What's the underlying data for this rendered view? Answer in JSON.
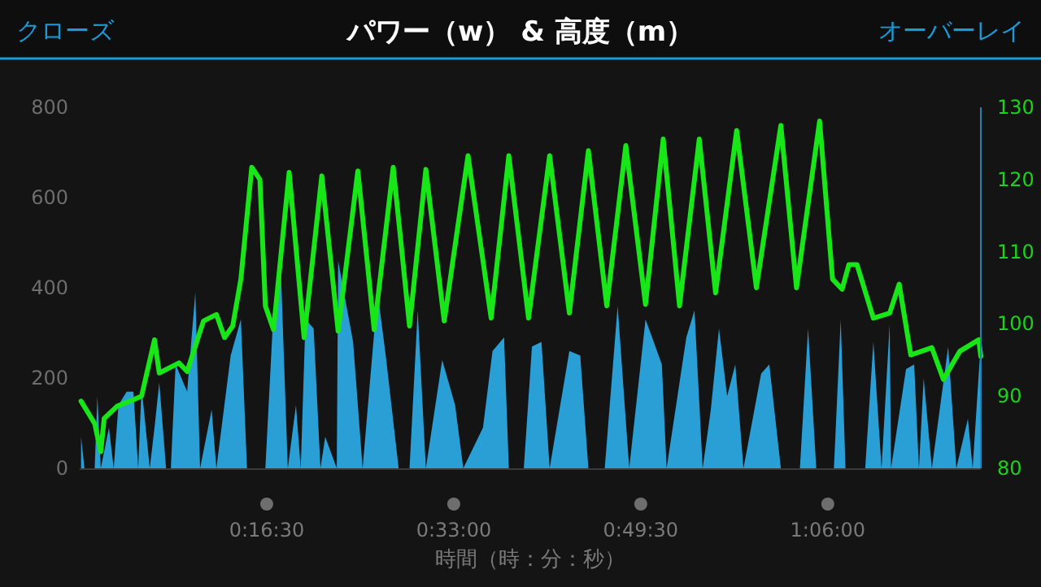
{
  "chart_data": {
    "type": "line",
    "title": "パワー（w） & 高度（m）",
    "xlabel": "時間（時：分：秒）",
    "annotations": [
      "クローズ",
      "オーバーレイ"
    ],
    "xlim": [
      0,
      1.325
    ],
    "xticks": [
      {
        "value": 0.275,
        "label": "0:16:30"
      },
      {
        "value": 0.55,
        "label": "0:33:00"
      },
      {
        "value": 0.825,
        "label": "0:49:30"
      },
      {
        "value": 1.1,
        "label": "1:06:00"
      }
    ],
    "ylim": [
      0,
      800
    ],
    "yticks": [
      0,
      200,
      400,
      600,
      800
    ],
    "y2lim": [
      80,
      130
    ],
    "y2ticks": [
      80,
      90,
      100,
      110,
      120,
      130
    ],
    "series": [
      {
        "type": "area",
        "axis": "y",
        "color": "#2a9fd6",
        "x": [
          0.002,
          0.007,
          0.022,
          0.026,
          0.031,
          0.043,
          0.05,
          0.057,
          0.069,
          0.079,
          0.086,
          0.091,
          0.103,
          0.11,
          0.117,
          0.127,
          0.134,
          0.141,
          0.158,
          0.17,
          0.177,
          0.194,
          0.201,
          0.222,
          0.237,
          0.246,
          0.273,
          0.285,
          0.296,
          0.306,
          0.318,
          0.325,
          0.332,
          0.344,
          0.354,
          0.361,
          0.378,
          0.38,
          0.402,
          0.416,
          0.438,
          0.45,
          0.469,
          0.485,
          0.497,
          0.509,
          0.533,
          0.552,
          0.564,
          0.593,
          0.607,
          0.624,
          0.631,
          0.653,
          0.665,
          0.679,
          0.691,
          0.72,
          0.736,
          0.748,
          0.772,
          0.791,
          0.808,
          0.832,
          0.856,
          0.863,
          0.892,
          0.904,
          0.916,
          0.928,
          0.94,
          0.952,
          0.964,
          0.976,
          1.002,
          1.014,
          1.031,
          1.059,
          1.071,
          1.083,
          1.109,
          1.119,
          1.126,
          1.155,
          1.167,
          1.179,
          1.191,
          1.193,
          1.215,
          1.227,
          1.234,
          1.241,
          1.253,
          1.277,
          1.289,
          1.306,
          1.313,
          1.325
        ],
        "values": [
          70,
          0,
          0,
          160,
          0,
          90,
          0,
          140,
          170,
          170,
          0,
          180,
          0,
          90,
          190,
          0,
          0,
          230,
          170,
          390,
          0,
          130,
          0,
          250,
          330,
          0,
          0,
          350,
          430,
          0,
          140,
          0,
          330,
          310,
          0,
          70,
          0,
          460,
          280,
          0,
          390,
          250,
          0,
          0,
          350,
          0,
          240,
          140,
          0,
          90,
          260,
          290,
          0,
          0,
          270,
          280,
          0,
          260,
          250,
          0,
          0,
          360,
          0,
          330,
          230,
          0,
          290,
          350,
          0,
          130,
          310,
          160,
          230,
          0,
          210,
          230,
          0,
          0,
          310,
          0,
          0,
          330,
          0,
          0,
          280,
          0,
          320,
          0,
          220,
          230,
          0,
          200,
          0,
          270,
          0,
          110,
          0,
          280
        ]
      },
      {
        "type": "line",
        "axis": "y2",
        "color": "#19e619",
        "x": [
          0.002,
          0.022,
          0.031,
          0.036,
          0.055,
          0.074,
          0.091,
          0.11,
          0.117,
          0.146,
          0.158,
          0.182,
          0.201,
          0.213,
          0.225,
          0.237,
          0.253,
          0.265,
          0.273,
          0.285,
          0.308,
          0.33,
          0.356,
          0.38,
          0.409,
          0.433,
          0.461,
          0.485,
          0.509,
          0.536,
          0.571,
          0.605,
          0.631,
          0.66,
          0.691,
          0.72,
          0.748,
          0.775,
          0.803,
          0.832,
          0.858,
          0.882,
          0.911,
          0.935,
          0.966,
          0.995,
          1.031,
          1.054,
          1.088,
          1.107,
          1.121,
          1.131,
          1.143,
          1.167,
          1.191,
          1.205,
          1.222,
          1.253,
          1.27,
          1.294,
          1.322,
          1.325
        ],
        "values": [
          89.3,
          86.2,
          82.3,
          86.9,
          88.6,
          89.3,
          90.0,
          97.8,
          93.2,
          94.6,
          93.4,
          100.4,
          101.3,
          98.1,
          99.7,
          106.2,
          121.7,
          120.0,
          102.5,
          99.2,
          121.0,
          98.1,
          120.5,
          99.0,
          121.2,
          99.2,
          121.7,
          99.7,
          121.4,
          100.4,
          123.3,
          100.8,
          123.3,
          100.8,
          123.3,
          101.5,
          124.0,
          102.5,
          124.7,
          102.7,
          125.6,
          102.5,
          125.6,
          104.3,
          126.8,
          105.0,
          127.5,
          105.0,
          128.1,
          106.2,
          104.8,
          108.2,
          108.2,
          100.8,
          101.5,
          105.5,
          95.7,
          96.7,
          92.3,
          96.2,
          97.8,
          95.5
        ]
      }
    ]
  }
}
